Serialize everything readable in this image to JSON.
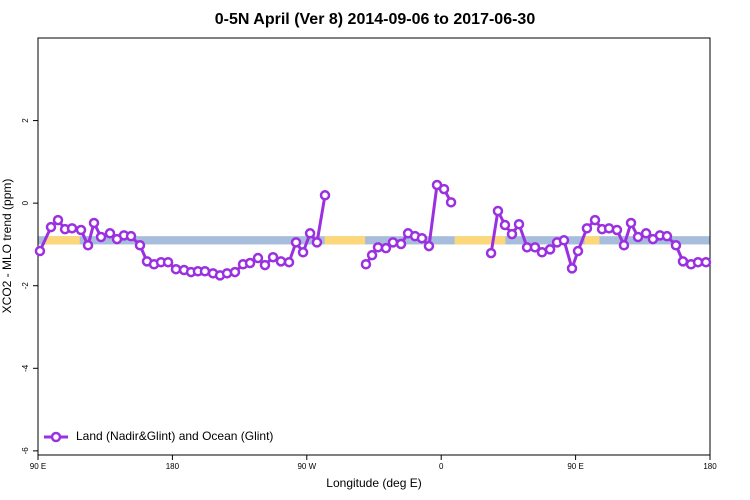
{
  "chart_data": {
    "type": "line",
    "title": "0-5N April (Ver 8)   2014-09-06 to 2017-06-30",
    "xlabel": "Longitude (deg E)",
    "ylabel": "XCO2 - MLO trend (ppm)",
    "xlim": [
      90,
      540
    ],
    "xticks": [
      {
        "value": 90,
        "label": "90 E"
      },
      180,
      {
        "value": 270,
        "label": "90 W"
      },
      {
        "value": 360,
        "label": "0"
      },
      {
        "value": 450,
        "label": "90 E"
      },
      {
        "value": 540,
        "label": "180"
      }
    ],
    "ylim": [
      -6.1,
      4
    ],
    "yticks": [
      -6,
      -4,
      -2,
      0,
      2
    ],
    "legend": "bottom-left",
    "band": {
      "ymin": -1.0,
      "ymax": -0.8,
      "color": "#a6bddb",
      "segments": [
        {
          "start": 95,
          "end": 118,
          "color": "#fdd87a"
        },
        {
          "start": 282,
          "end": 309,
          "color": "#fdd87a"
        },
        {
          "start": 369,
          "end": 403,
          "color": "#fdd87a"
        },
        {
          "start": 456,
          "end": 466,
          "color": "#fdd87a"
        }
      ]
    },
    "series": [
      {
        "name": "Land (Nadir&Glint) and Ocean (Glint)",
        "color": "#9b30e0",
        "x": [
          91.3,
          98.7,
          103.4,
          108.1,
          112.8,
          118.8,
          123.5,
          127.5,
          132.2,
          138.2,
          142.9,
          147.6,
          152.3,
          158.3,
          163.0,
          167.7,
          172.4,
          177.1,
          182.4,
          187.8,
          192.5,
          197.1,
          201.8,
          207.2,
          211.9,
          216.6,
          221.9,
          227.3,
          232.0,
          237.3,
          242.0,
          247.4,
          252.7,
          258.1,
          262.8,
          267.5,
          272.2,
          276.8,
          282.2,
          null,
          309.6,
          313.7,
          317.7,
          323.0,
          327.7,
          333.1,
          337.8,
          342.5,
          347.1,
          351.8,
          357.2,
          361.9,
          366.6,
          null,
          393.4,
          398.0,
          402.7,
          407.4,
          412.1,
          417.5,
          422.8,
          427.5,
          432.9,
          437.6,
          442.2,
          447.6,
          451.6,
          457.6,
          463.0,
          467.7,
          472.4,
          477.7,
          482.4,
          487.1,
          491.8,
          497.2,
          501.8,
          506.5,
          511.2,
          517.2,
          521.9,
          527.3,
          532.0,
          537.3
        ],
        "values": [
          -1.16,
          -0.58,
          -0.41,
          -0.63,
          -0.61,
          -0.65,
          -1.02,
          -0.48,
          -0.82,
          -0.73,
          -0.87,
          -0.78,
          -0.8,
          -1.02,
          -1.41,
          -1.48,
          -1.43,
          -1.43,
          -1.6,
          -1.62,
          -1.67,
          -1.65,
          -1.65,
          -1.7,
          -1.75,
          -1.7,
          -1.67,
          -1.48,
          -1.45,
          -1.33,
          -1.5,
          -1.31,
          -1.41,
          -1.43,
          -0.95,
          -1.19,
          -0.73,
          -0.95,
          0.19,
          null,
          -1.48,
          -1.26,
          -1.07,
          -1.09,
          -0.95,
          -0.99,
          -0.73,
          -0.8,
          -0.85,
          -1.04,
          0.44,
          0.34,
          0.02,
          null,
          -1.21,
          -0.19,
          -0.53,
          -0.75,
          -0.51,
          -1.07,
          -1.07,
          -1.19,
          -1.12,
          -0.95,
          -0.9,
          -1.58,
          -1.16,
          -0.61,
          -0.41,
          -0.63,
          -0.61,
          -0.65,
          -1.02,
          -0.48,
          -0.82,
          -0.73,
          -0.87,
          -0.78,
          -0.8,
          -1.02,
          -1.41,
          -1.48,
          -1.43,
          -1.43
        ]
      }
    ]
  }
}
